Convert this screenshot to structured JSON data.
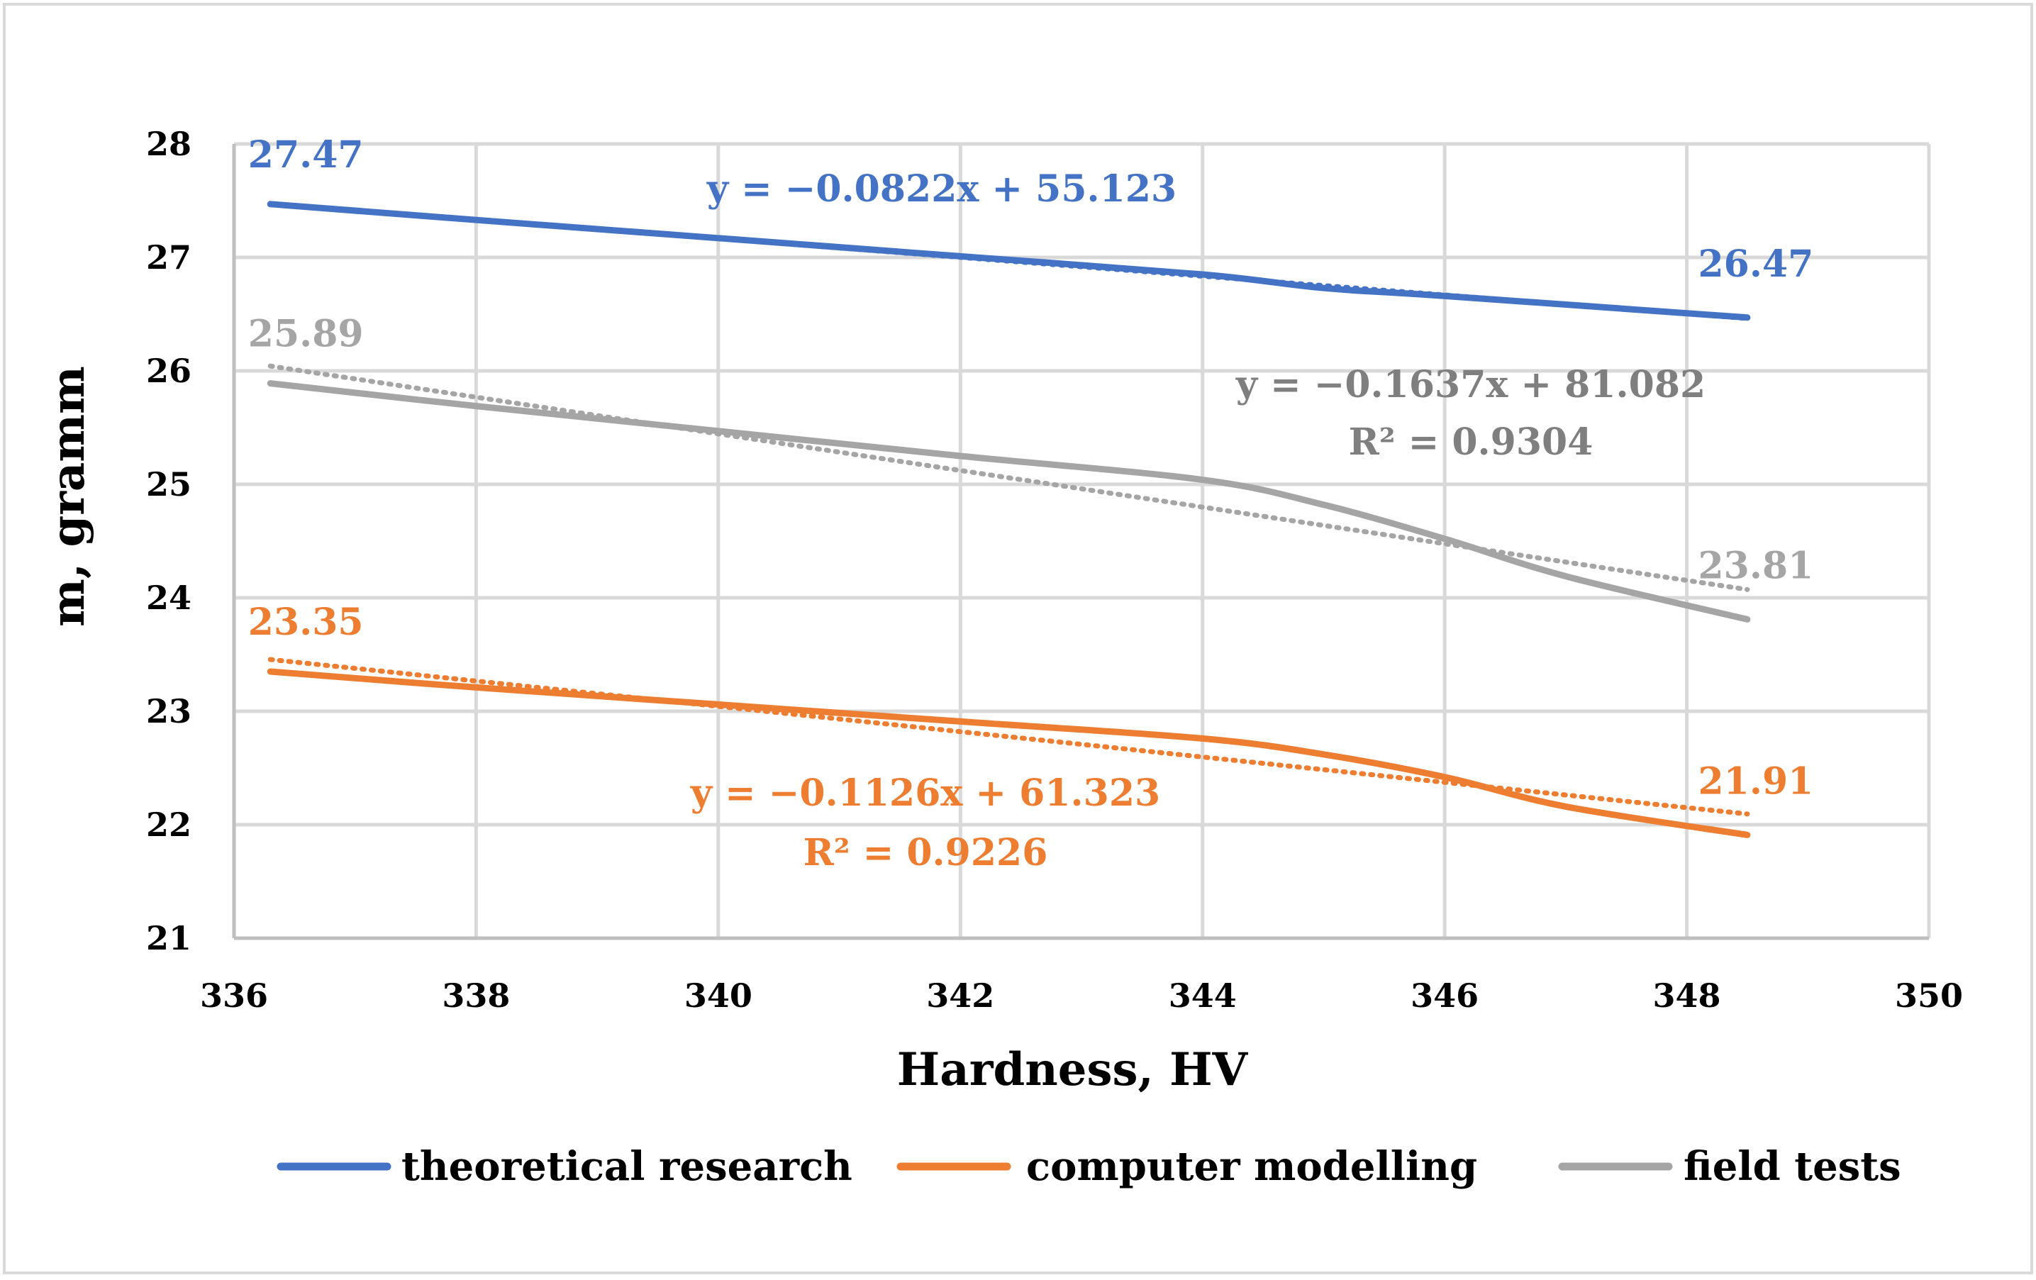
{
  "chart_data": {
    "type": "line",
    "title": "",
    "xlabel": "Hardness, HV",
    "ylabel": "m, gramm",
    "xlim": [
      336,
      350
    ],
    "ylim": [
      21,
      28
    ],
    "x_ticks": [
      "336",
      "338",
      "340",
      "342",
      "344",
      "346",
      "348",
      "350"
    ],
    "y_ticks": [
      "21",
      "22",
      "23",
      "24",
      "25",
      "26",
      "27",
      "28"
    ],
    "grid": true,
    "legend_position": "bottom",
    "series": [
      {
        "name": "theoretical research",
        "color": "#4472c4",
        "points": [
          {
            "x": 336.3,
            "y": 27.47
          },
          {
            "x": 338.0,
            "y": 27.33
          },
          {
            "x": 340.0,
            "y": 27.17
          },
          {
            "x": 342.0,
            "y": 27.01
          },
          {
            "x": 344.0,
            "y": 26.85
          },
          {
            "x": 345.0,
            "y": 26.73
          },
          {
            "x": 346.0,
            "y": 26.66
          },
          {
            "x": 348.5,
            "y": 26.47
          }
        ],
        "first_label": "27.47",
        "last_label": "26.47",
        "trendline": {
          "slope": -0.0822,
          "intercept": 55.123,
          "equation": "y = −0.0822x + 55.123",
          "r2": ""
        }
      },
      {
        "name": "computer modelling",
        "color": "#ed7d31",
        "points": [
          {
            "x": 336.3,
            "y": 23.35
          },
          {
            "x": 338.0,
            "y": 23.21
          },
          {
            "x": 340.0,
            "y": 23.06
          },
          {
            "x": 342.0,
            "y": 22.91
          },
          {
            "x": 344.0,
            "y": 22.76
          },
          {
            "x": 345.0,
            "y": 22.62
          },
          {
            "x": 346.0,
            "y": 22.42
          },
          {
            "x": 347.0,
            "y": 22.16
          },
          {
            "x": 348.5,
            "y": 21.91
          }
        ],
        "first_label": "23.35",
        "last_label": "21.91",
        "trendline": {
          "slope": -0.1126,
          "intercept": 61.323,
          "equation": "y = −0.1126x + 61.323",
          "r2": "R² = 0.9226"
        }
      },
      {
        "name": "field tests",
        "color": "#a5a5a5",
        "points": [
          {
            "x": 336.3,
            "y": 25.89
          },
          {
            "x": 338.0,
            "y": 25.69
          },
          {
            "x": 340.0,
            "y": 25.47
          },
          {
            "x": 342.0,
            "y": 25.25
          },
          {
            "x": 344.0,
            "y": 25.04
          },
          {
            "x": 345.0,
            "y": 24.82
          },
          {
            "x": 346.0,
            "y": 24.52
          },
          {
            "x": 347.0,
            "y": 24.19
          },
          {
            "x": 348.5,
            "y": 23.81
          }
        ],
        "first_label": "25.89",
        "last_label": "23.81",
        "trendline": {
          "slope": -0.1637,
          "intercept": 81.082,
          "equation": "y = −0.1637x + 81.082",
          "r2": "R² = 0.9304"
        }
      }
    ]
  }
}
